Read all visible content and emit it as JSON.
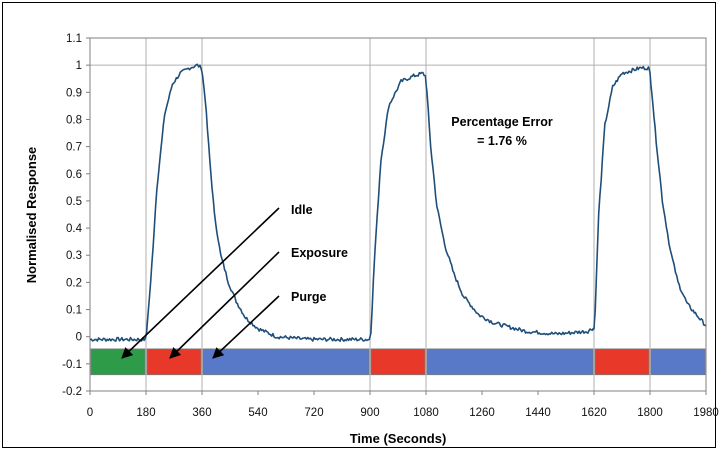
{
  "chart_data": {
    "type": "line",
    "title": "",
    "xlabel": "Time (Seconds)",
    "ylabel": "Normalised Response",
    "xlim": [
      0,
      1980
    ],
    "ylim": [
      -0.2,
      1.1
    ],
    "x_ticks": [
      "0",
      "180",
      "360",
      "540",
      "720",
      "900",
      "1080",
      "1260",
      "1440",
      "1620",
      "1800",
      "1980"
    ],
    "y_ticks": [
      "1.1",
      "1",
      "0.9",
      "0.8",
      "0.7",
      "0.6",
      "0.5",
      "0.4",
      "0.3",
      "0.2",
      "0.1",
      "0",
      "-0.1",
      "-0.2"
    ],
    "grid": "vertical lines at phase boundaries (180, 360, 900, 1080, 1620, 1800) and horizontal line at y = 1",
    "series": [
      {
        "color": "#1f4e79",
        "x": [
          0,
          150,
          178,
          182,
          195,
          215,
          240,
          265,
          290,
          320,
          345,
          358,
          362,
          370,
          385,
          400,
          420,
          445,
          470,
          500,
          540,
          600,
          700,
          800,
          890,
          898,
          903,
          915,
          935,
          960,
          1000,
          1040,
          1070,
          1078,
          1083,
          1095,
          1115,
          1140,
          1170,
          1200,
          1250,
          1300,
          1400,
          1500,
          1600,
          1615,
          1620,
          1624,
          1635,
          1655,
          1680,
          1710,
          1740,
          1770,
          1795,
          1800,
          1806,
          1820,
          1840,
          1865,
          1890,
          1920,
          1950,
          1980
        ],
        "values": [
          -0.01,
          -0.01,
          -0.01,
          0.02,
          0.2,
          0.55,
          0.82,
          0.93,
          0.97,
          0.99,
          1.0,
          0.99,
          0.96,
          0.88,
          0.65,
          0.45,
          0.3,
          0.2,
          0.13,
          0.07,
          0.03,
          0.0,
          -0.01,
          -0.01,
          -0.01,
          -0.01,
          0.02,
          0.3,
          0.65,
          0.85,
          0.94,
          0.96,
          0.97,
          0.96,
          0.9,
          0.7,
          0.48,
          0.34,
          0.23,
          0.15,
          0.08,
          0.05,
          0.02,
          0.01,
          0.02,
          0.03,
          0.03,
          0.1,
          0.45,
          0.78,
          0.92,
          0.97,
          0.98,
          0.99,
          0.99,
          0.97,
          0.9,
          0.72,
          0.5,
          0.32,
          0.2,
          0.12,
          0.08,
          0.04
        ]
      }
    ],
    "phase_bands": [
      {
        "start": 0,
        "end": 180,
        "color": "#2e9b49"
      },
      {
        "start": 180,
        "end": 360,
        "color": "#e8382a"
      },
      {
        "start": 360,
        "end": 900,
        "color": "#5878c8"
      },
      {
        "start": 900,
        "end": 1080,
        "color": "#e8382a"
      },
      {
        "start": 1080,
        "end": 1620,
        "color": "#5878c8"
      },
      {
        "start": 1620,
        "end": 1800,
        "color": "#e8382a"
      },
      {
        "start": 1800,
        "end": 1980,
        "color": "#5878c8"
      }
    ],
    "annotations": {
      "idle": "Idle",
      "exposure": "Exposure",
      "purge": "Purge",
      "error_line1": "Percentage Error",
      "error_line2": "= 1.76 %"
    }
  }
}
